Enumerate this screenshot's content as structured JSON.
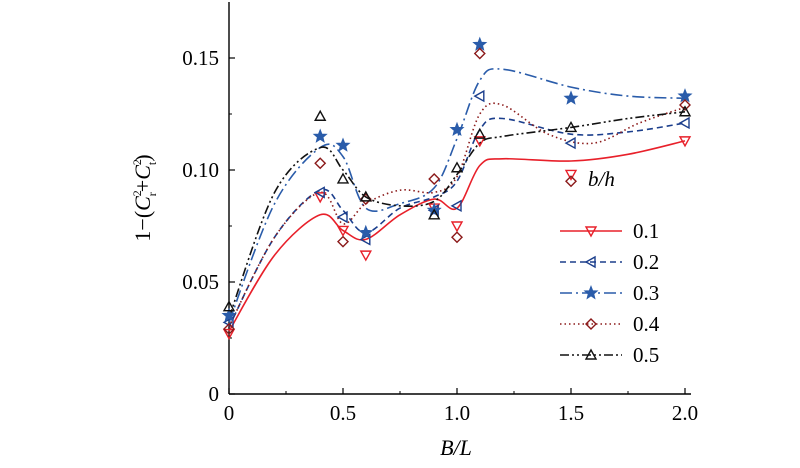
{
  "chart_data": {
    "type": "line",
    "xlabel": "B/L",
    "ylabel": "1−(C_r^2+C_t^2)",
    "ylabel_parts": {
      "prefix": "1−(",
      "c1": "C",
      "sup1": "2",
      "sub1": "r",
      "plus": "+",
      "c2": "C",
      "sup2": "2",
      "sub2": "t",
      "suffix": ")"
    },
    "xlim": [
      0,
      2.0
    ],
    "ylim": [
      0,
      0.175
    ],
    "xticks": [
      "0",
      "0.5",
      "1.0",
      "1.5",
      "2.0"
    ],
    "xtick_values": [
      0,
      0.5,
      1.0,
      1.5,
      2.0
    ],
    "yticks": [
      "0",
      "0.05",
      "0.10",
      "0.15"
    ],
    "ytick_values": [
      0,
      0.05,
      0.1,
      0.15
    ],
    "legend_title": "b/h",
    "legend_position": "right",
    "x": [
      0,
      0.4,
      0.5,
      0.6,
      0.9,
      1.0,
      1.1,
      1.5,
      2.0
    ],
    "series": [
      {
        "name": "0.1",
        "color": "#e8202a",
        "marker": "triangle-down",
        "linestyle": "solid",
        "points": [
          0.027,
          0.088,
          0.073,
          0.062,
          0.083,
          0.075,
          0.113,
          0.098,
          0.113
        ],
        "curve": [
          [
            0,
            0.028
          ],
          [
            0.2,
            0.062
          ],
          [
            0.4,
            0.08
          ],
          [
            0.5,
            0.073
          ],
          [
            0.6,
            0.069
          ],
          [
            0.75,
            0.08
          ],
          [
            0.9,
            0.087
          ],
          [
            1.0,
            0.083
          ],
          [
            1.1,
            0.102
          ],
          [
            1.2,
            0.105
          ],
          [
            1.5,
            0.104
          ],
          [
            1.75,
            0.107
          ],
          [
            2.0,
            0.113
          ]
        ]
      },
      {
        "name": "0.2",
        "color": "#1b3e8c",
        "marker": "triangle-left",
        "linestyle": "dashed",
        "points": [
          0.032,
          0.09,
          0.079,
          0.069,
          0.082,
          0.084,
          0.133,
          0.112,
          0.121
        ],
        "curve": [
          [
            0,
            0.03
          ],
          [
            0.2,
            0.07
          ],
          [
            0.4,
            0.091
          ],
          [
            0.5,
            0.082
          ],
          [
            0.6,
            0.072
          ],
          [
            0.75,
            0.083
          ],
          [
            0.9,
            0.088
          ],
          [
            1.0,
            0.095
          ],
          [
            1.1,
            0.118
          ],
          [
            1.2,
            0.123
          ],
          [
            1.5,
            0.116
          ],
          [
            1.75,
            0.117
          ],
          [
            2.0,
            0.121
          ]
        ]
      },
      {
        "name": "0.3",
        "color": "#2a5caa",
        "marker": "star",
        "linestyle": "dashdot",
        "points": [
          0.035,
          0.115,
          0.111,
          0.072,
          0.082,
          0.118,
          0.156,
          0.132,
          0.133
        ],
        "curve": [
          [
            0,
            0.032
          ],
          [
            0.2,
            0.085
          ],
          [
            0.4,
            0.11
          ],
          [
            0.5,
            0.106
          ],
          [
            0.6,
            0.083
          ],
          [
            0.75,
            0.085
          ],
          [
            0.9,
            0.092
          ],
          [
            1.0,
            0.114
          ],
          [
            1.1,
            0.14
          ],
          [
            1.2,
            0.145
          ],
          [
            1.5,
            0.137
          ],
          [
            1.75,
            0.133
          ],
          [
            2.0,
            0.132
          ]
        ]
      },
      {
        "name": "0.4",
        "color": "#8b1a1a",
        "marker": "diamond",
        "linestyle": "dotted",
        "points": [
          0.029,
          0.103,
          0.068,
          0.087,
          0.096,
          0.07,
          0.152,
          0.095,
          0.129
        ],
        "curve": [
          [
            0,
            0.03
          ],
          [
            0.2,
            0.07
          ],
          [
            0.4,
            0.09
          ],
          [
            0.5,
            0.076
          ],
          [
            0.6,
            0.085
          ],
          [
            0.75,
            0.091
          ],
          [
            0.9,
            0.09
          ],
          [
            1.0,
            0.097
          ],
          [
            1.1,
            0.125
          ],
          [
            1.2,
            0.129
          ],
          [
            1.4,
            0.116
          ],
          [
            1.6,
            0.112
          ],
          [
            1.8,
            0.121
          ],
          [
            2.0,
            0.128
          ]
        ]
      },
      {
        "name": "0.5",
        "color": "#111111",
        "marker": "triangle-up",
        "linestyle": "dashdotdot",
        "points": [
          0.039,
          0.124,
          0.096,
          0.088,
          0.08,
          0.101,
          0.116,
          0.119,
          0.126
        ],
        "curve": [
          [
            0,
            0.034
          ],
          [
            0.2,
            0.09
          ],
          [
            0.4,
            0.11
          ],
          [
            0.5,
            0.1
          ],
          [
            0.6,
            0.088
          ],
          [
            0.75,
            0.084
          ],
          [
            0.9,
            0.086
          ],
          [
            1.0,
            0.098
          ],
          [
            1.1,
            0.112
          ],
          [
            1.2,
            0.115
          ],
          [
            1.5,
            0.119
          ],
          [
            1.75,
            0.123
          ],
          [
            2.0,
            0.126
          ]
        ]
      }
    ]
  }
}
